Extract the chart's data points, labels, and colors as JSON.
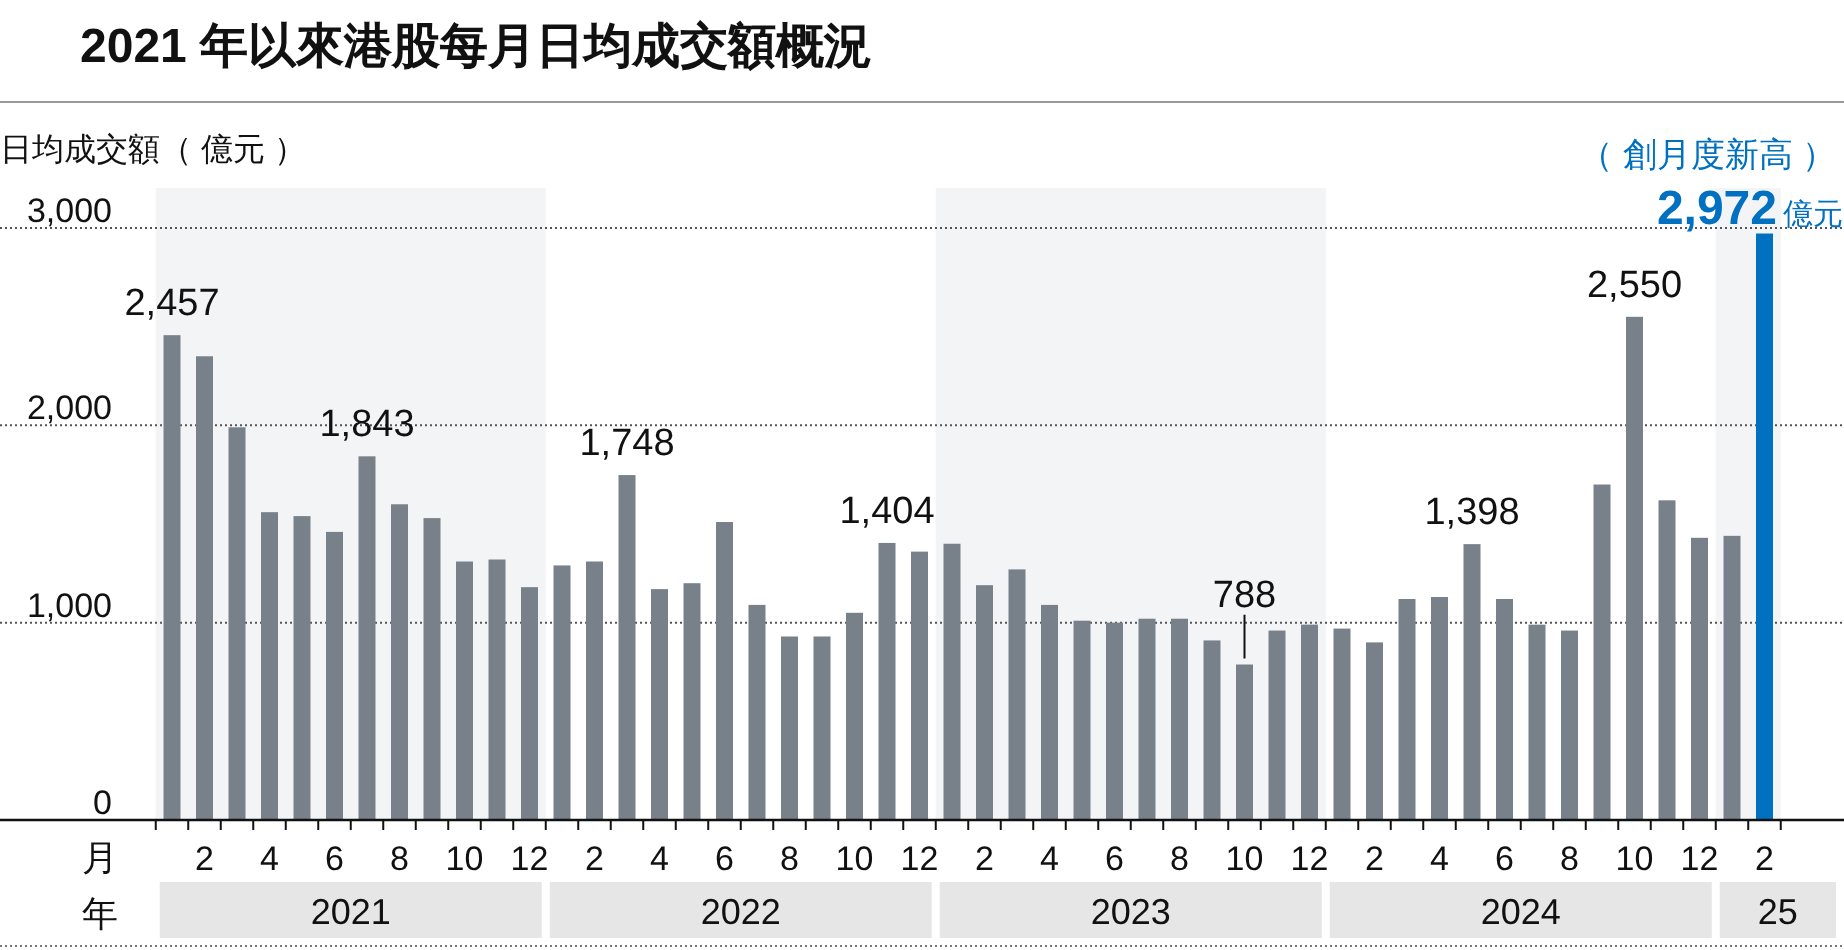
{
  "chart_data": {
    "type": "bar",
    "title": "2021 年以來港股每月日均成交額概況",
    "ylabel": "日均成交額（ 億元 ）",
    "categories": [
      null,
      "2",
      null,
      "4",
      null,
      "6",
      null,
      "8",
      null,
      "10",
      null,
      "12",
      null,
      "2",
      null,
      "4",
      null,
      "6",
      null,
      "8",
      null,
      "10",
      null,
      "12",
      null,
      "2",
      null,
      "4",
      null,
      "6",
      null,
      "8",
      null,
      "10",
      null,
      "12",
      null,
      "2",
      null,
      "4",
      null,
      "6",
      null,
      "8",
      null,
      "10",
      null,
      "12",
      null,
      "2"
    ],
    "values": [
      2457,
      2350,
      1990,
      1560,
      1540,
      1460,
      1843,
      1600,
      1530,
      1310,
      1320,
      1180,
      1290,
      1310,
      1748,
      1170,
      1200,
      1510,
      1090,
      930,
      930,
      1050,
      1404,
      1360,
      1400,
      1190,
      1270,
      1090,
      1010,
      1000,
      1020,
      1020,
      910,
      788,
      960,
      990,
      970,
      900,
      1120,
      1130,
      1398,
      1120,
      990,
      960,
      1700,
      2550,
      1620,
      1430,
      1440,
      2972
    ],
    "colors": [
      "#78818a",
      "#78818a",
      "#78818a",
      "#78818a",
      "#78818a",
      "#78818a",
      "#78818a",
      "#78818a",
      "#78818a",
      "#78818a",
      "#78818a",
      "#78818a",
      "#78818a",
      "#78818a",
      "#78818a",
      "#78818a",
      "#78818a",
      "#78818a",
      "#78818a",
      "#78818a",
      "#78818a",
      "#78818a",
      "#78818a",
      "#78818a",
      "#78818a",
      "#78818a",
      "#78818a",
      "#78818a",
      "#78818a",
      "#78818a",
      "#78818a",
      "#78818a",
      "#78818a",
      "#78818a",
      "#78818a",
      "#78818a",
      "#78818a",
      "#78818a",
      "#78818a",
      "#78818a",
      "#78818a",
      "#78818a",
      "#78818a",
      "#78818a",
      "#78818a",
      "#78818a",
      "#78818a",
      "#78818a",
      "#78818a",
      "#0070c0"
    ],
    "value_labels": [
      "2,457",
      null,
      null,
      null,
      null,
      null,
      "1,843",
      null,
      null,
      null,
      null,
      null,
      null,
      null,
      "1,748",
      null,
      null,
      null,
      null,
      null,
      null,
      null,
      "1,404",
      null,
      null,
      null,
      null,
      null,
      null,
      null,
      null,
      null,
      null,
      "788",
      null,
      null,
      null,
      null,
      null,
      null,
      "1,398",
      null,
      null,
      null,
      null,
      "2,550",
      null,
      null,
      null,
      "2,972"
    ],
    "ylim": [
      0,
      3000
    ],
    "yticks": [
      {
        "value": 0,
        "label": "0"
      },
      {
        "value": 1000,
        "label": "1,000"
      },
      {
        "value": 2000,
        "label": "2,000"
      },
      {
        "value": 3000,
        "label": "3,000"
      }
    ],
    "grid": "y",
    "annotations": [
      "月",
      "年",
      "2021",
      "2022",
      "2023",
      "2024",
      "25",
      "億元",
      "（ 創月度新高 ）"
    ]
  }
}
